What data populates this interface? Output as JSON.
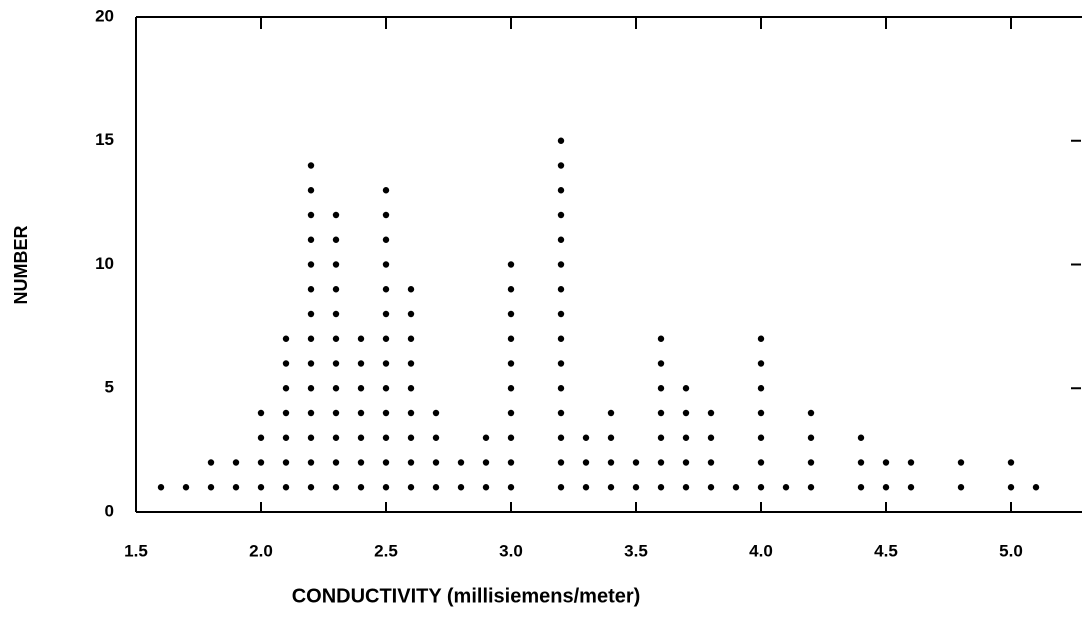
{
  "chart_data": {
    "type": "dot",
    "x_label": "CONDUCTIVITY (millisiemens/meter)",
    "y_label": "NUMBER",
    "x": [
      1.6,
      1.7,
      1.8,
      1.9,
      2.0,
      2.1,
      2.2,
      2.3,
      2.4,
      2.5,
      2.6,
      2.7,
      2.8,
      2.9,
      3.0,
      3.1,
      3.2,
      3.3,
      3.4,
      3.5,
      3.6,
      3.7,
      3.8,
      3.9,
      4.0,
      4.1,
      4.2,
      4.3,
      4.4,
      4.5,
      4.6,
      4.7,
      4.8,
      4.9,
      5.0,
      5.1
    ],
    "values": [
      1,
      1,
      2,
      2,
      4,
      7,
      14,
      12,
      7,
      13,
      9,
      4,
      2,
      3,
      10,
      0,
      15,
      3,
      4,
      2,
      7,
      5,
      4,
      1,
      7,
      1,
      4,
      0,
      3,
      2,
      2,
      0,
      2,
      0,
      2,
      1
    ],
    "color": "#000000",
    "xlim": [
      1.5,
      5.28
    ],
    "ylim": [
      0,
      20
    ],
    "xticks": [
      1.5,
      {
        "value": 2,
        "label": "2.0"
      },
      2.5,
      {
        "value": 3,
        "label": "3.0"
      },
      3.5,
      {
        "value": 4,
        "label": "4.0"
      },
      4.5,
      {
        "value": 5,
        "label": "5.0"
      }
    ],
    "yticks": [
      0,
      5,
      10,
      15,
      20
    ]
  }
}
